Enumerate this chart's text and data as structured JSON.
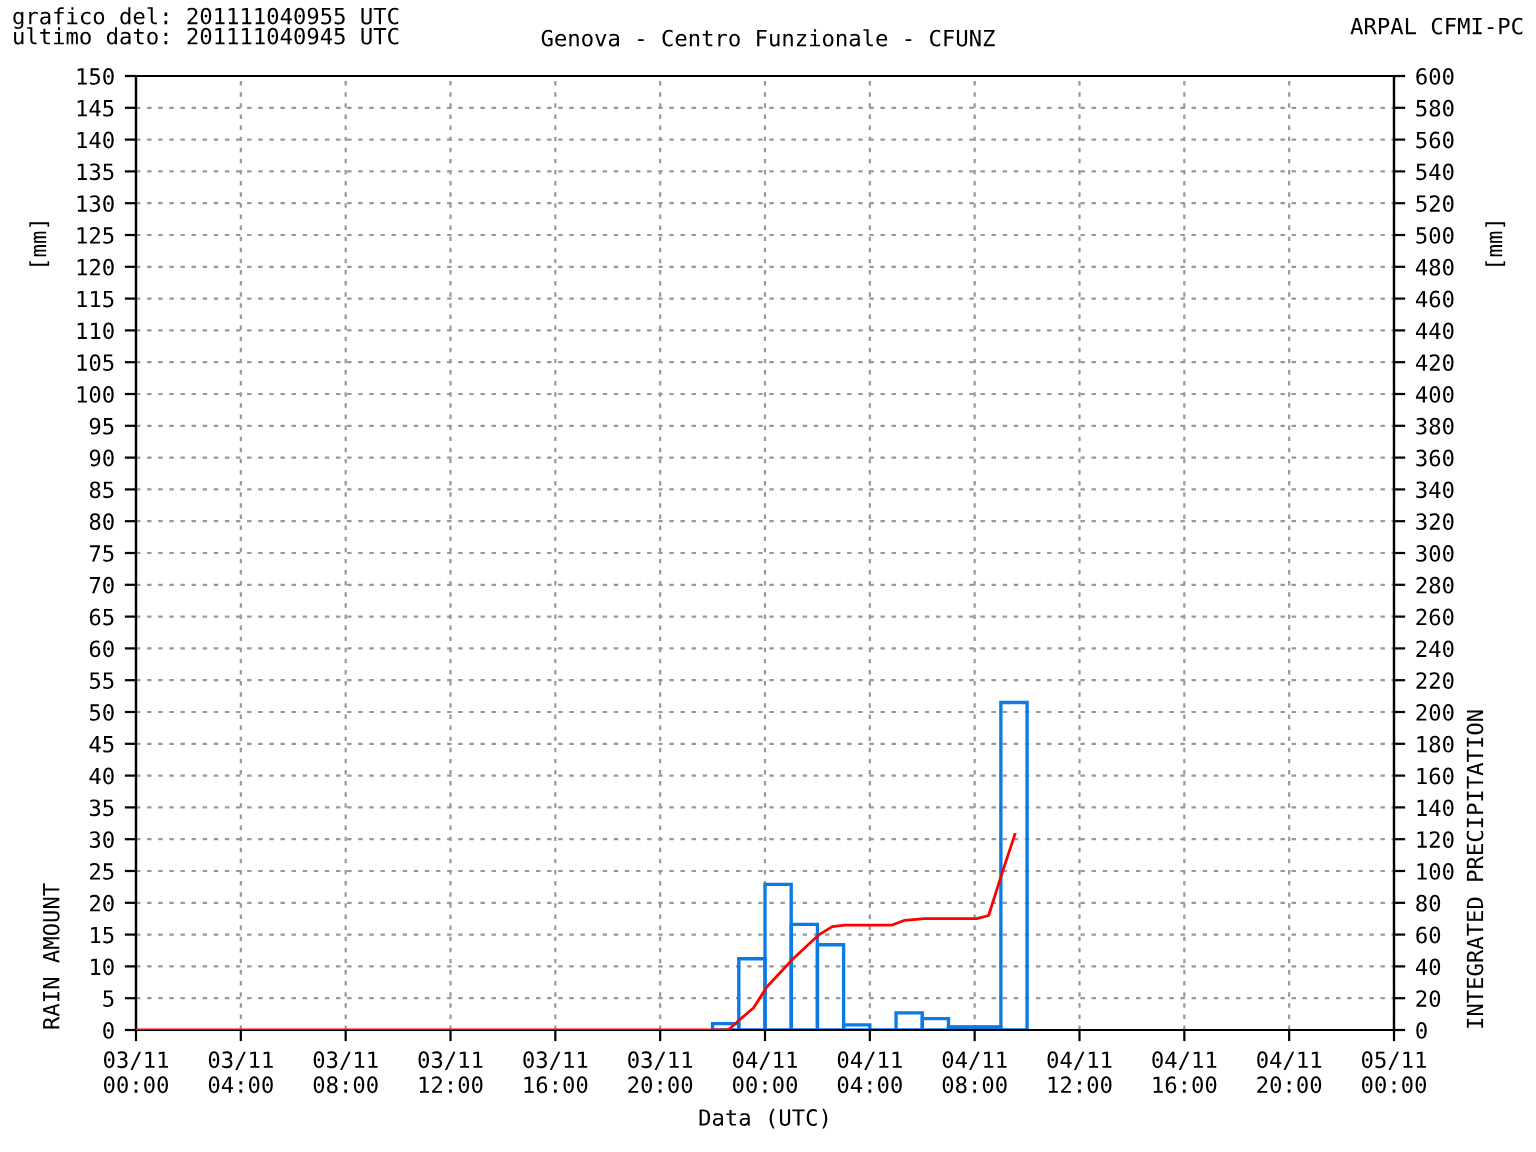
{
  "chart_data": {
    "type": "bar",
    "title": "Genova - Centro Funzionale - CFUNZ",
    "xlabel": "Data (UTC)",
    "ylabel": "RAIN AMOUNT",
    "y2label": "INTEGRATED PRECIPITATION",
    "annotations": [
      "grafico del: 201111040955 UTC\nultimo dato: 201111040945 UTC",
      "ARPAL CFMI-PC",
      "[mm]",
      "[mm]"
    ],
    "series": [
      {
        "color": "#0a7ae6",
        "x": [
          "2011-11-03T22:30",
          "2011-11-03T23:30",
          "2011-11-04T00:30",
          "2011-11-04T01:30",
          "2011-11-04T02:30",
          "2011-11-04T03:30",
          "2011-11-04T04:30",
          "2011-11-04T05:30",
          "2011-11-04T06:30",
          "2011-11-04T07:30",
          "2011-11-04T08:30",
          "2011-11-04T09:30"
        ],
        "values": [
          1.0,
          11.2,
          22.9,
          16.6,
          13.4,
          0.8,
          0,
          2.7,
          1.8,
          0.5,
          0.5,
          51.5
        ]
      },
      {
        "type": "line",
        "axis": "y2",
        "color": "#ff0000",
        "x": [
          "2011-11-03T00:00",
          "2011-11-03T22:36",
          "2011-11-03T23:00",
          "2011-11-03T23:34",
          "2011-11-04T00:04",
          "2011-11-04T01:05",
          "2011-11-04T02:04",
          "2011-11-04T02:34",
          "2011-11-04T03:03",
          "2011-11-04T04:51",
          "2011-11-04T05:20",
          "2011-11-04T06:05",
          "2011-11-04T08:05",
          "2011-11-04T08:32",
          "2011-11-04T09:02",
          "2011-11-04T09:32"
        ],
        "values": [
          0,
          0,
          6,
          14,
          27,
          45,
          60,
          65,
          66,
          66,
          69,
          70,
          70,
          72,
          98,
          123
        ]
      }
    ],
    "xlim": [
      "2011-11-03T00:00",
      "2011-11-05T00:00"
    ],
    "xticks": [
      {
        "value": "2011-11-03T00:00",
        "label": "03/11\n00:00"
      },
      {
        "value": "2011-11-03T04:00",
        "label": "03/11\n04:00"
      },
      {
        "value": "2011-11-03T08:00",
        "label": "03/11\n08:00"
      },
      {
        "value": "2011-11-03T12:00",
        "label": "03/11\n12:00"
      },
      {
        "value": "2011-11-03T16:00",
        "label": "03/11\n16:00"
      },
      {
        "value": "2011-11-03T20:00",
        "label": "03/11\n20:00"
      },
      {
        "value": "2011-11-04T00:00",
        "label": "04/11\n00:00"
      },
      {
        "value": "2011-11-04T04:00",
        "label": "04/11\n04:00"
      },
      {
        "value": "2011-11-04T08:00",
        "label": "04/11\n08:00"
      },
      {
        "value": "2011-11-04T12:00",
        "label": "04/11\n12:00"
      },
      {
        "value": "2011-11-04T16:00",
        "label": "04/11\n16:00"
      },
      {
        "value": "2011-11-04T20:00",
        "label": "04/11\n20:00"
      },
      {
        "value": "2011-11-05T00:00",
        "label": "05/11\n00:00"
      }
    ],
    "ylim": [
      0,
      150
    ],
    "yticks": [
      0,
      5,
      10,
      15,
      20,
      25,
      30,
      35,
      40,
      45,
      50,
      55,
      60,
      65,
      70,
      75,
      80,
      85,
      90,
      95,
      100,
      105,
      110,
      115,
      120,
      125,
      130,
      135,
      140,
      145,
      150
    ],
    "y2lim": [
      0,
      600
    ],
    "y2ticks": [
      0,
      20,
      40,
      60,
      80,
      100,
      120,
      140,
      160,
      180,
      200,
      220,
      240,
      260,
      280,
      300,
      320,
      340,
      360,
      380,
      400,
      420,
      440,
      460,
      480,
      500,
      520,
      540,
      560,
      580,
      600
    ],
    "grid": true,
    "legend": false
  }
}
